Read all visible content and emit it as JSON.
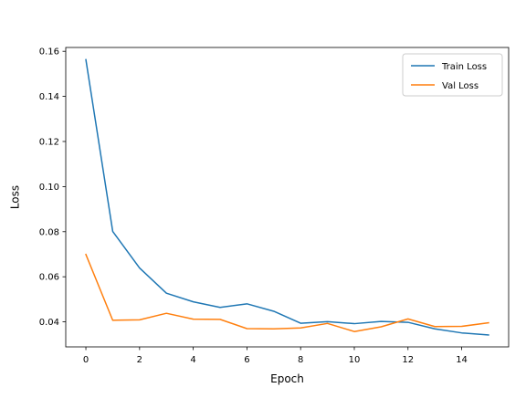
{
  "chart_data": {
    "type": "line",
    "xlabel": "Epoch",
    "ylabel": "Loss",
    "xlim": [
      -0.75,
      15.75
    ],
    "ylim": [
      0.0289,
      0.1617
    ],
    "xticks": [
      0,
      2,
      4,
      6,
      8,
      10,
      12,
      14
    ],
    "xtick_labels": [
      "0",
      "2",
      "4",
      "6",
      "8",
      "10",
      "12",
      "14"
    ],
    "yticks": [
      0.04,
      0.06,
      0.08,
      0.1,
      0.12,
      0.14,
      0.16
    ],
    "ytick_labels": [
      "0.04",
      "0.06",
      "0.08",
      "0.10",
      "0.12",
      "0.14",
      "0.16"
    ],
    "grid": false,
    "legend_position": "top-right",
    "x": [
      0,
      1,
      2,
      3,
      4,
      5,
      6,
      7,
      8,
      9,
      10,
      11,
      12,
      13,
      14,
      15
    ],
    "series": [
      {
        "name": "Train Loss",
        "color": "#1f77b4",
        "values": [
          0.1563,
          0.0801,
          0.0639,
          0.0527,
          0.0489,
          0.0464,
          0.048,
          0.0447,
          0.0394,
          0.0401,
          0.0392,
          0.0402,
          0.0398,
          0.0369,
          0.0351,
          0.0342
        ]
      },
      {
        "name": "Val Loss",
        "color": "#ff7f0e",
        "values": [
          0.0699,
          0.0407,
          0.0409,
          0.0438,
          0.0412,
          0.0411,
          0.037,
          0.0369,
          0.0373,
          0.0393,
          0.0357,
          0.0378,
          0.0413,
          0.0379,
          0.038,
          0.0396
        ]
      }
    ]
  }
}
